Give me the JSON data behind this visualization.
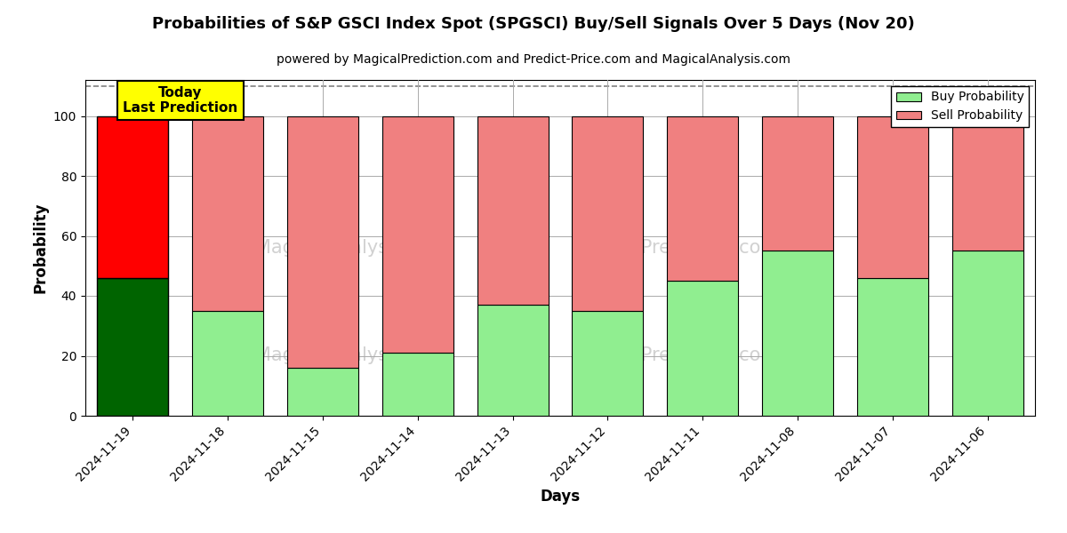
{
  "title": "Probabilities of S&P GSCI Index Spot (SPGSCI) Buy/Sell Signals Over 5 Days (Nov 20)",
  "subtitle": "powered by MagicalPrediction.com and Predict-Price.com and MagicalAnalysis.com",
  "xlabel": "Days",
  "ylabel": "Probability",
  "categories": [
    "2024-11-19",
    "2024-11-18",
    "2024-11-15",
    "2024-11-14",
    "2024-11-13",
    "2024-11-12",
    "2024-11-11",
    "2024-11-08",
    "2024-11-07",
    "2024-11-06"
  ],
  "buy_values": [
    46,
    35,
    16,
    21,
    37,
    35,
    45,
    55,
    46,
    55
  ],
  "sell_values": [
    54,
    65,
    84,
    79,
    63,
    65,
    55,
    45,
    54,
    45
  ],
  "today_buy_color": "#006400",
  "today_sell_color": "#FF0000",
  "buy_color": "#90EE90",
  "sell_color": "#F08080",
  "today_annotation": "Today\nLast Prediction",
  "legend_buy_label": "Buy Probability",
  "legend_sell_label": "Sell Probability",
  "ylim": [
    0,
    112
  ],
  "yticks": [
    0,
    20,
    40,
    60,
    80,
    100
  ],
  "dashed_line_y": 110,
  "figsize": [
    12,
    6
  ],
  "dpi": 100,
  "background_color": "#ffffff",
  "grid_color": "#aaaaaa",
  "bar_width": 0.75
}
